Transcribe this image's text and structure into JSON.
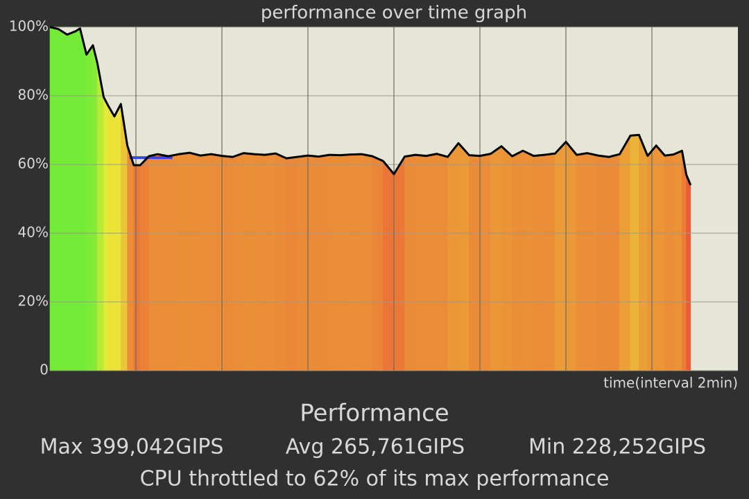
{
  "chart_data": {
    "type": "line",
    "title": "performance over time graph",
    "x_label": "time(interval 2min)",
    "x": [
      0,
      0.2,
      0.4,
      0.6,
      0.7,
      0.85,
      1.0,
      1.1,
      1.25,
      1.35,
      1.5,
      1.65,
      1.8,
      1.95,
      2.1,
      2.3,
      2.5,
      2.75,
      3.0,
      3.25,
      3.5,
      3.75,
      4.0,
      4.25,
      4.5,
      4.75,
      5.0,
      5.25,
      5.5,
      5.75,
      6.0,
      6.25,
      6.5,
      6.75,
      7.0,
      7.25,
      7.5,
      7.75,
      8.0,
      8.25,
      8.5,
      8.75,
      9.0,
      9.25,
      9.5,
      9.75,
      10.0,
      10.25,
      10.5,
      10.75,
      11.0,
      11.25,
      11.5,
      11.75,
      12.0,
      12.25,
      12.5,
      12.75,
      13.0,
      13.25,
      13.5,
      13.7,
      13.9,
      14.1,
      14.3,
      14.5,
      14.7,
      14.8,
      14.9
    ],
    "values": [
      100,
      99.4,
      97.8,
      98.8,
      99.6,
      92,
      94.7,
      89.7,
      79.6,
      77.2,
      74,
      77.6,
      65.5,
      59.8,
      59.8,
      62.4,
      63,
      62.4,
      63,
      63.4,
      62.6,
      63,
      62.5,
      62.2,
      63.3,
      63,
      62.8,
      63.2,
      61.8,
      62.2,
      62.6,
      62.3,
      62.8,
      62.7,
      62.9,
      63,
      62.4,
      61,
      57.2,
      62.3,
      62.8,
      62.5,
      63.1,
      62.2,
      66.2,
      62.7,
      62.5,
      63.1,
      65.3,
      62.4,
      64,
      62.5,
      62.8,
      63.2,
      66.6,
      62.8,
      63.3,
      62.6,
      62.2,
      63,
      68.4,
      68.6,
      62.5,
      65.5,
      62.6,
      62.9,
      64,
      57,
      54
    ],
    "line_color": "#000000",
    "reference_line": {
      "value": 62,
      "xlim": [
        1.85,
        2.85
      ],
      "color": "#3a48e0"
    },
    "xlim": [
      0,
      16
    ],
    "xticks": [
      2,
      4,
      6,
      8,
      10,
      12,
      14
    ],
    "ylim": [
      0,
      100
    ],
    "yticks": [
      0,
      {
        "value": 20,
        "label": "20%"
      },
      {
        "value": 40,
        "label": "40%"
      },
      {
        "value": 60,
        "label": "60%"
      },
      {
        "value": 80,
        "label": "80%"
      },
      {
        "value": 100,
        "label": "100%"
      }
    ],
    "grid": true
  },
  "stats": {
    "heading": "Performance",
    "max": "Max 399,042GIPS",
    "avg": "Avg 265,761GIPS",
    "min": "Min 228,252GIPS",
    "max_color": "#5ea346",
    "avg_color": "#a87a4c",
    "min_color": "#a8363a",
    "summary": "CPU throttled to 62% of its max performance"
  }
}
